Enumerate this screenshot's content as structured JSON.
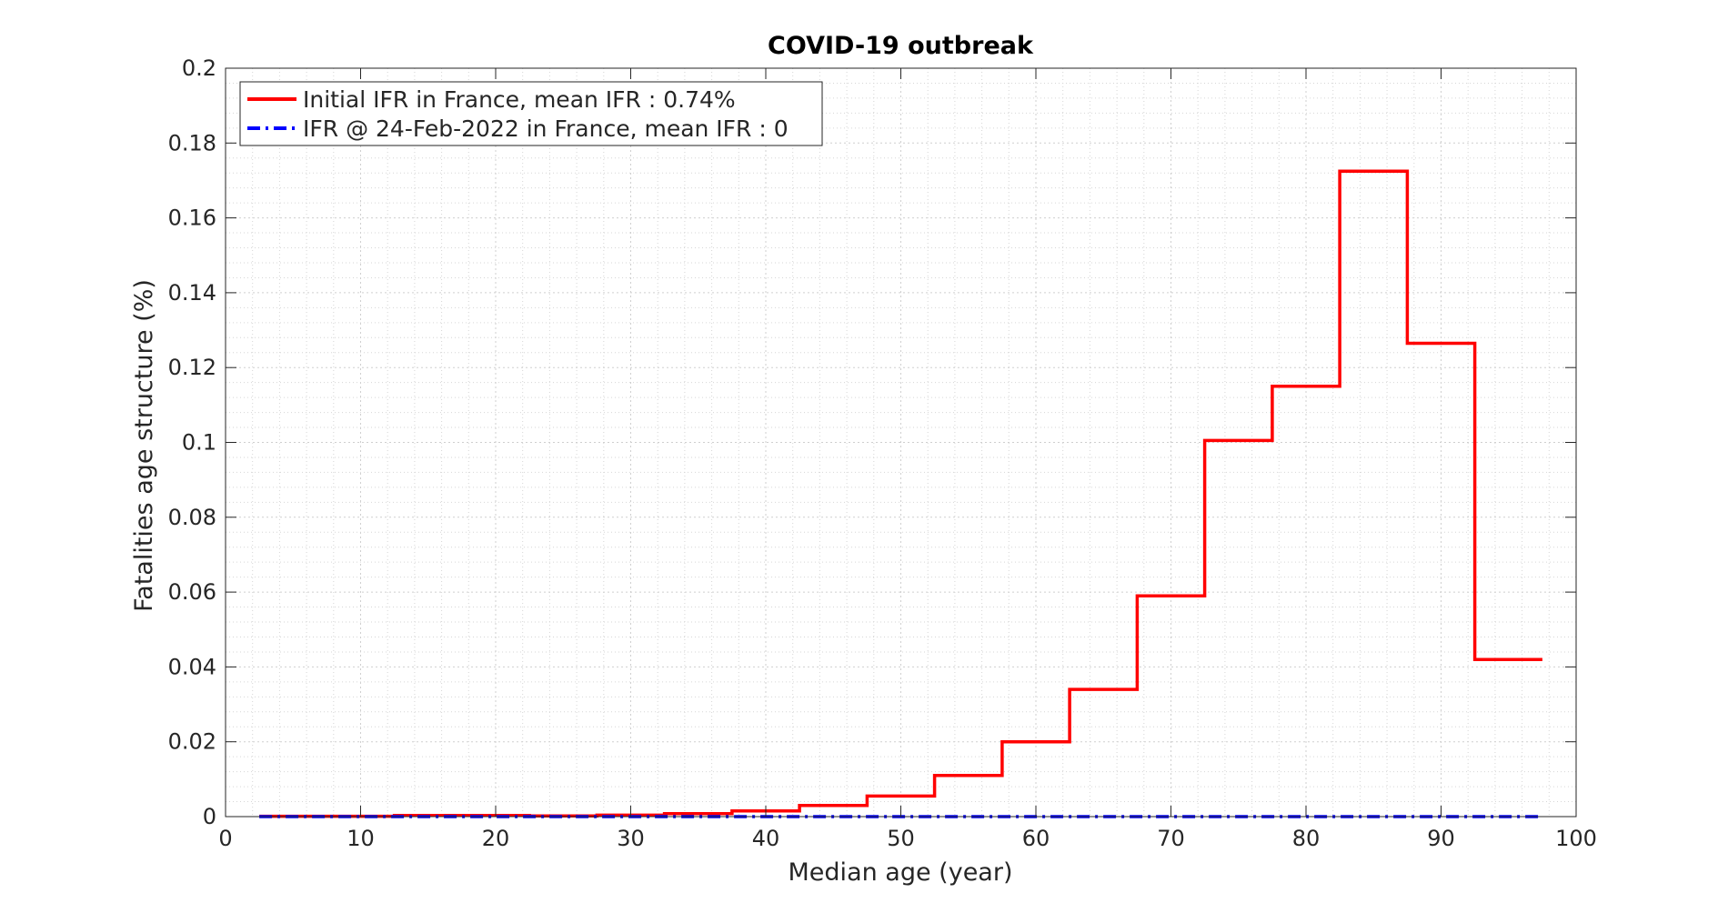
{
  "chart_data": {
    "type": "line",
    "title": "COVID-19 outbreak",
    "xlabel": "Median age (year)",
    "ylabel": "Fatalities age structure (%)",
    "xlim": [
      0,
      100
    ],
    "ylim": [
      0,
      0.2
    ],
    "x_ticks": [
      0,
      10,
      20,
      30,
      40,
      50,
      60,
      70,
      80,
      90,
      100
    ],
    "x_tick_labels": [
      "0",
      "10",
      "20",
      "30",
      "40",
      "50",
      "60",
      "70",
      "80",
      "90",
      "100"
    ],
    "y_ticks": [
      0,
      0.02,
      0.04,
      0.06,
      0.08,
      0.1,
      0.12,
      0.14,
      0.16,
      0.18,
      0.2
    ],
    "y_tick_labels": [
      "0",
      "0.02",
      "0.04",
      "0.06",
      "0.08",
      "0.1",
      "0.12",
      "0.14",
      "0.16",
      "0.18",
      "0.2"
    ],
    "grid": true,
    "minor_grid": true,
    "legend_position": "top-left",
    "step_edges": [
      2.5,
      7.5,
      12.5,
      17.5,
      22.5,
      27.5,
      32.5,
      37.5,
      42.5,
      47.5,
      52.5,
      57.5,
      62.5,
      67.5,
      72.5,
      77.5,
      82.5,
      87.5,
      92.5,
      97.5
    ],
    "series": [
      {
        "name": "Initial IFR in France, mean IFR : 0.74%",
        "color": "#ff0000",
        "style": "solid",
        "values": [
          0.0001,
          0.0001,
          0.0003,
          0.0003,
          0.0002,
          0.0004,
          0.0008,
          0.0015,
          0.003,
          0.0055,
          0.011,
          0.02,
          0.034,
          0.059,
          0.1005,
          0.115,
          0.1725,
          0.1265,
          0.042
        ]
      },
      {
        "name": "IFR @ 24-Feb-2022 in France, mean IFR : 0",
        "color": "#0000ff",
        "style": "dash-dot",
        "values": [
          0,
          0,
          0,
          0,
          0,
          0,
          0,
          0,
          0,
          0,
          0,
          0,
          0,
          0,
          0,
          0,
          0,
          0,
          0
        ]
      }
    ]
  }
}
